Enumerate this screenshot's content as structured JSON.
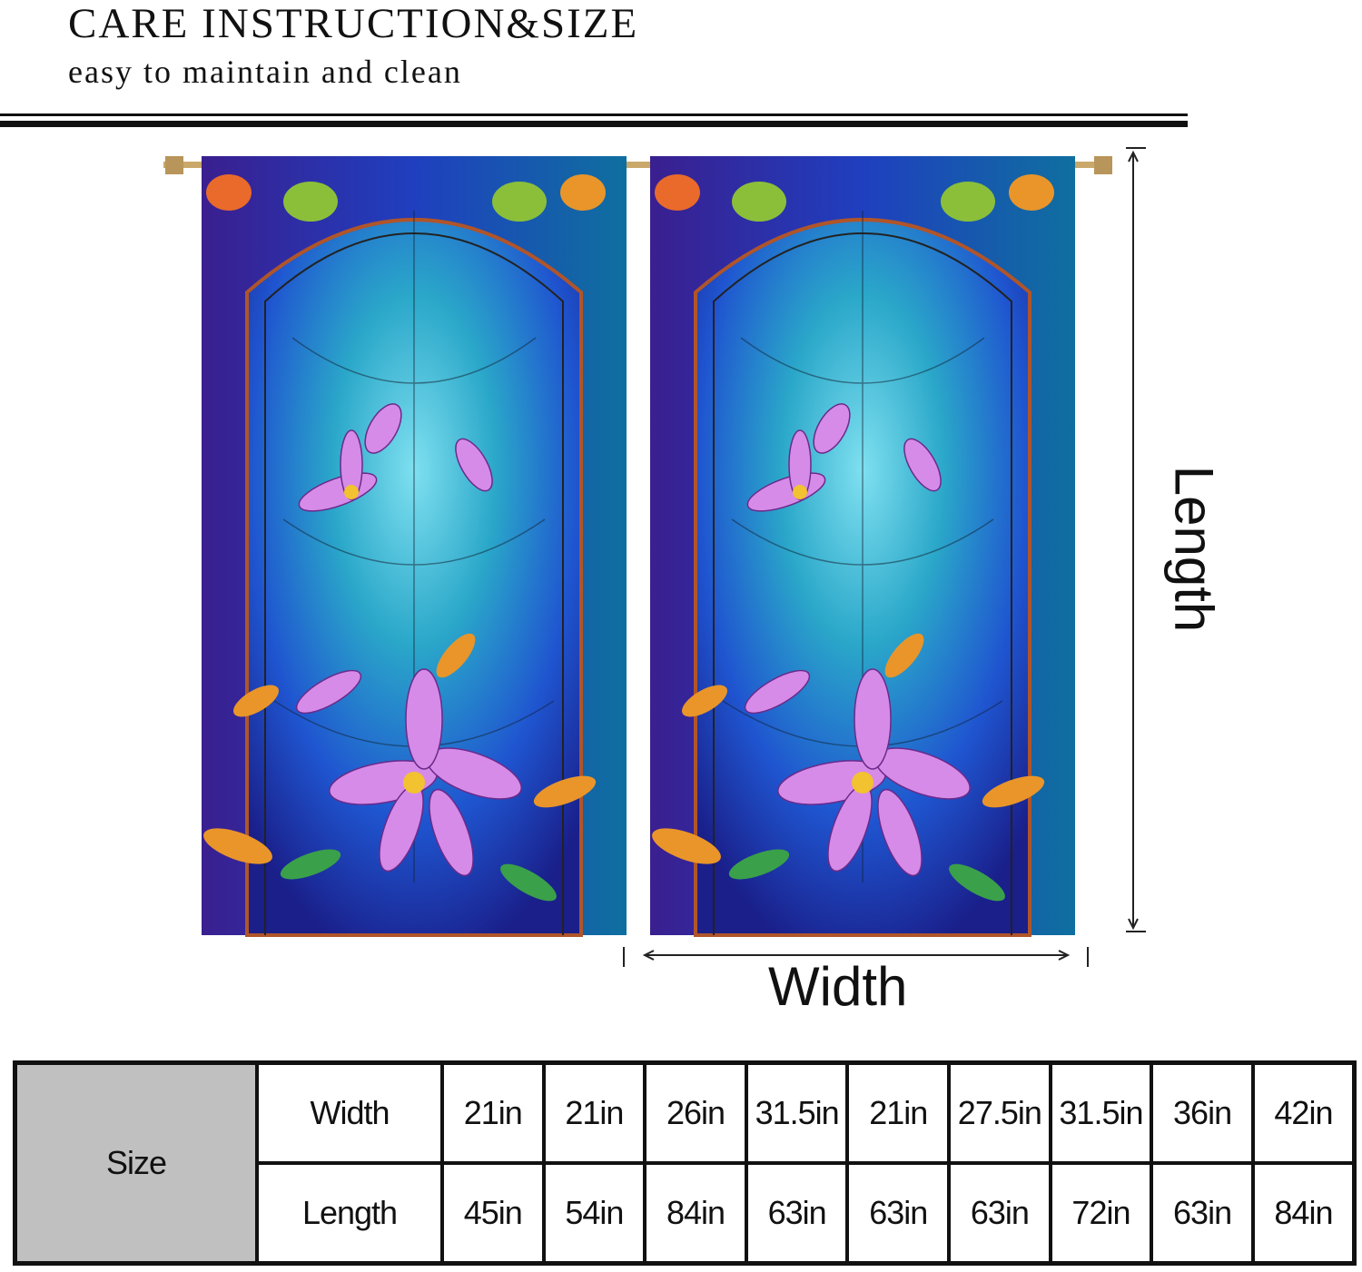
{
  "header": {
    "title": "CARE INSTRUCTION&SIZE",
    "subtitle": "easy to maintain and clean"
  },
  "diagram": {
    "width_label": "Width",
    "length_label": "Length",
    "colors": {
      "glass_blue": "#1f3fbf",
      "glass_teal": "#2aa7c9",
      "flower_pink": "#d68be8",
      "leaf_orange": "#e9952a"
    }
  },
  "size_table": {
    "header": "Size",
    "rows": [
      {
        "label": "Width",
        "values": [
          "21in",
          "21in",
          "26in",
          "31.5in",
          "21in",
          "27.5in",
          "31.5in",
          "36in",
          "42in"
        ]
      },
      {
        "label": "Length",
        "values": [
          "45in",
          "54in",
          "84in",
          "63in",
          "63in",
          "63in",
          "72in",
          "63in",
          "84in"
        ]
      }
    ]
  }
}
